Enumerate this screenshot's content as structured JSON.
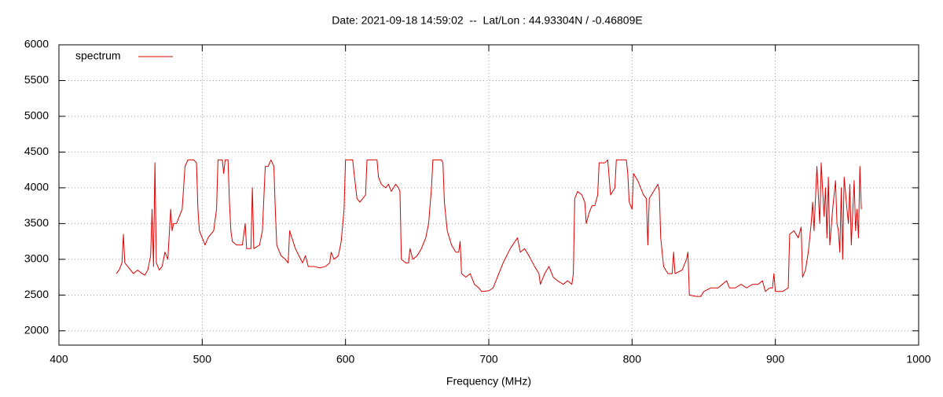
{
  "chart_data": {
    "type": "line",
    "title": "Date: 2021-09-18 14:59:02  --  Lat/Lon : 44.93304N / -0.46809E",
    "x_label": "Frequency (MHz)",
    "xlim": [
      400,
      1000
    ],
    "xticks": [
      400,
      500,
      600,
      700,
      800,
      900,
      1000
    ],
    "ylim": [
      1800,
      6000
    ],
    "yticks": [
      2000,
      2500,
      3000,
      3500,
      4000,
      4500,
      5000,
      5500,
      6000
    ],
    "grid": true,
    "legend": "top-left",
    "x": [
      440,
      442,
      444,
      445,
      446,
      448,
      450,
      452,
      455,
      458,
      460,
      462,
      464,
      465,
      466,
      467,
      468,
      470,
      472,
      474,
      476,
      478,
      479,
      480,
      482,
      484,
      486,
      488,
      490,
      494,
      496,
      497,
      498,
      500,
      502,
      504,
      506,
      508,
      510,
      511,
      514,
      515,
      516,
      518,
      519,
      520,
      521,
      524,
      528,
      530,
      531,
      534,
      535,
      536,
      540,
      542,
      544,
      546,
      548,
      550,
      551,
      552,
      555,
      558,
      560,
      561,
      565,
      570,
      572,
      574,
      578,
      582,
      586,
      589,
      590,
      592,
      595,
      597,
      599,
      600,
      605,
      606,
      608,
      610,
      612,
      614,
      615,
      622,
      623,
      625,
      628,
      630,
      632,
      635,
      637,
      638,
      639,
      642,
      644,
      645,
      647,
      650,
      653,
      656,
      658,
      660,
      661,
      667,
      668,
      669,
      671,
      674,
      677,
      679,
      680,
      681,
      684,
      687,
      690,
      693,
      695,
      700,
      703,
      706,
      710,
      715,
      720,
      722,
      725,
      728,
      732,
      735,
      736,
      739,
      742,
      745,
      748,
      752,
      755,
      758,
      759,
      760,
      762,
      765,
      767,
      768,
      770,
      772,
      774,
      776,
      777,
      781,
      783,
      785,
      788,
      789,
      796,
      797,
      798,
      800,
      801,
      804,
      806,
      808,
      810,
      811,
      812,
      815,
      818,
      819,
      820,
      822,
      825,
      828,
      829,
      830,
      835,
      838,
      839,
      840,
      845,
      848,
      850,
      855,
      860,
      863,
      866,
      868,
      872,
      876,
      880,
      884,
      888,
      891,
      893,
      896,
      898,
      899,
      900,
      905,
      909,
      910,
      913,
      916,
      918,
      919,
      921,
      923,
      925,
      926,
      927,
      929,
      931,
      932,
      934,
      935,
      936,
      937,
      938,
      940,
      942,
      943,
      944,
      945,
      946,
      947,
      948,
      950,
      951,
      952,
      953,
      955,
      956,
      957,
      958,
      959,
      960
    ],
    "series": [
      {
        "name": "spectrum",
        "color": "#dd0000",
        "values": [
          2800,
          2850,
          2950,
          3350,
          2950,
          2900,
          2850,
          2800,
          2850,
          2800,
          2780,
          2850,
          3050,
          3700,
          2900,
          4350,
          2950,
          2850,
          2900,
          3100,
          3000,
          3700,
          3400,
          3500,
          3500,
          3600,
          3700,
          4300,
          4390,
          4390,
          4350,
          3700,
          3400,
          3300,
          3200,
          3300,
          3350,
          3400,
          3700,
          4390,
          4390,
          4200,
          4390,
          4390,
          3800,
          3400,
          3250,
          3200,
          3200,
          3500,
          3150,
          3150,
          4000,
          3150,
          3200,
          3400,
          4300,
          4300,
          4390,
          4300,
          3700,
          3200,
          3050,
          3000,
          2950,
          3400,
          3150,
          2950,
          3050,
          2900,
          2900,
          2880,
          2900,
          2950,
          3100,
          3000,
          3050,
          3250,
          3700,
          4390,
          4390,
          4200,
          3850,
          3800,
          3850,
          3900,
          4390,
          4390,
          4150,
          4050,
          4000,
          4050,
          3950,
          4050,
          4000,
          3950,
          3000,
          2950,
          2950,
          3150,
          3000,
          3050,
          3150,
          3300,
          3500,
          4000,
          4390,
          4390,
          4350,
          3800,
          3400,
          3200,
          3100,
          3100,
          3250,
          2800,
          2750,
          2800,
          2650,
          2600,
          2550,
          2560,
          2600,
          2750,
          2950,
          3150,
          3300,
          3100,
          3150,
          3050,
          2900,
          2800,
          2650,
          2800,
          2900,
          2750,
          2700,
          2650,
          2700,
          2650,
          2800,
          3850,
          3950,
          3900,
          3800,
          3500,
          3650,
          3750,
          3750,
          3900,
          4350,
          4350,
          4390,
          3900,
          4000,
          4390,
          4390,
          4200,
          3800,
          3700,
          4200,
          4100,
          4000,
          3900,
          3850,
          3200,
          3850,
          3950,
          4050,
          3950,
          3300,
          2900,
          2800,
          2800,
          3100,
          2800,
          2850,
          3000,
          3100,
          2500,
          2480,
          2480,
          2550,
          2600,
          2600,
          2650,
          2700,
          2600,
          2600,
          2650,
          2600,
          2650,
          2650,
          2700,
          2550,
          2600,
          2600,
          2800,
          2550,
          2550,
          2600,
          3350,
          3400,
          3300,
          3450,
          2750,
          2850,
          3100,
          3500,
          3800,
          3400,
          4300,
          3500,
          4350,
          3600,
          4000,
          3300,
          4150,
          3200,
          3700,
          4100,
          3500,
          3400,
          3100,
          4000,
          3000,
          4150,
          3700,
          3500,
          4050,
          3200,
          4100,
          3400,
          3700,
          3300,
          4300,
          3700
        ]
      }
    ]
  }
}
